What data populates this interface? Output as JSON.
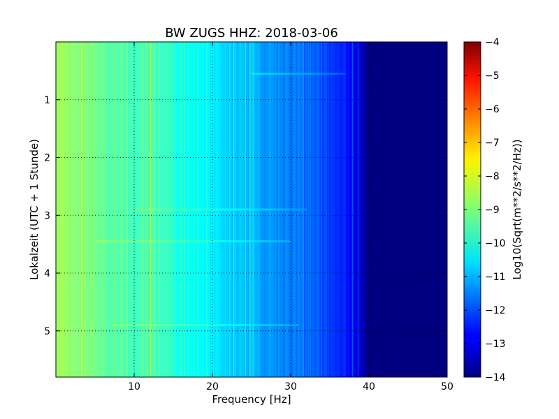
{
  "chart_data": {
    "type": "heatmap",
    "title": "BW ZUGS HHZ: 2018-03-06",
    "xlabel": "Frequency [Hz]",
    "ylabel": "Lokalzeit (UTC + 1 Stunde)",
    "xlim": [
      0,
      50
    ],
    "ylim": [
      5.8,
      0
    ],
    "xticks": [
      10,
      20,
      30,
      40,
      50
    ],
    "yticks": [
      1,
      2,
      3,
      4,
      5
    ],
    "grid": true,
    "colormap": "jet",
    "colorbar": {
      "label": "Log10(Sqrt(m**2/s**2/Hz))",
      "range": [
        -14,
        -4
      ],
      "ticks": [
        -14,
        -13,
        -12,
        -11,
        -10,
        -9,
        -8,
        -7,
        -6,
        -5,
        -4
      ]
    },
    "profile": {
      "frequency": [
        0,
        2,
        5,
        8,
        10,
        12,
        15,
        18,
        20,
        22,
        24,
        26,
        28,
        30,
        32,
        34,
        36,
        38,
        39,
        40,
        45,
        50
      ],
      "value": [
        -8.6,
        -8.8,
        -9.1,
        -9.4,
        -9.6,
        -9.4,
        -9.9,
        -10.2,
        -10.4,
        -10.7,
        -10.8,
        -11.1,
        -11.3,
        -11.5,
        -11.7,
        -12.0,
        -12.3,
        -12.7,
        -13.3,
        -14.0,
        -14.0,
        -14.0
      ]
    },
    "vertical_lines": [
      {
        "frequency": 9.1,
        "delta": 0.8
      },
      {
        "frequency": 9.7,
        "delta": 0.3
      },
      {
        "frequency": 12.1,
        "delta": 0.9
      },
      {
        "frequency": 16.4,
        "delta": 0.6
      },
      {
        "frequency": 19.2,
        "delta": 0.4
      },
      {
        "frequency": 22.7,
        "delta": 0.5
      },
      {
        "frequency": 24.2,
        "delta": 0.8
      },
      {
        "frequency": 24.8,
        "delta": 1.3
      },
      {
        "frequency": 25.2,
        "delta": 0.7
      },
      {
        "frequency": 31.6,
        "delta": 0.5
      },
      {
        "frequency": 33.9,
        "delta": 0.4
      },
      {
        "frequency": 37.9,
        "delta": 0.8
      },
      {
        "frequency": 38.6,
        "delta": 0.9
      }
    ],
    "horizontal_events": [
      {
        "time": 0.55,
        "fmin": 25,
        "fmax": 37,
        "delta": 0.6
      },
      {
        "time": 2.9,
        "fmin": 10,
        "fmax": 32,
        "delta": 0.5
      },
      {
        "time": 3.45,
        "fmin": 5,
        "fmax": 30,
        "delta": 0.5
      },
      {
        "time": 4.9,
        "fmin": 7,
        "fmax": 31,
        "delta": 0.5
      }
    ]
  }
}
